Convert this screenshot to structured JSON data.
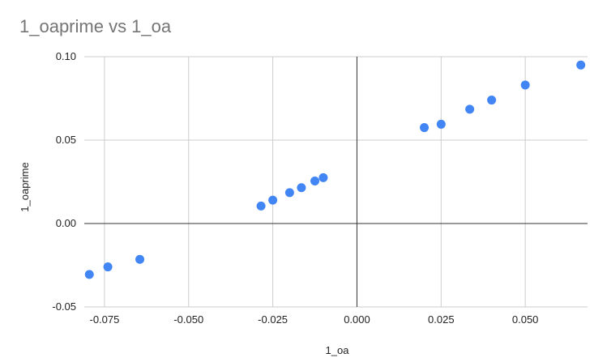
{
  "chart_data": {
    "type": "scatter",
    "title": "1_oaprime vs 1_oa",
    "xlabel": "1_oa",
    "ylabel": "1_oaprime",
    "xlim": [
      -0.081,
      0.0685
    ],
    "ylim": [
      -0.05,
      0.1
    ],
    "x_ticks": [
      -0.075,
      -0.05,
      -0.025,
      0.0,
      0.025,
      0.05
    ],
    "x_tick_labels": [
      "-0.075",
      "-0.050",
      "-0.025",
      "0.000",
      "0.025",
      "0.050"
    ],
    "y_ticks": [
      -0.05,
      0.0,
      0.05,
      0.1
    ],
    "y_tick_labels": [
      "-0.05",
      "0.00",
      "0.05",
      "0.10"
    ],
    "grid": true,
    "legend": "none",
    "point_color": "#4285F4",
    "points": [
      {
        "x": -0.0795,
        "y": -0.0305
      },
      {
        "x": -0.074,
        "y": -0.026
      },
      {
        "x": -0.0645,
        "y": -0.0215
      },
      {
        "x": -0.0285,
        "y": 0.0105
      },
      {
        "x": -0.025,
        "y": 0.014
      },
      {
        "x": -0.02,
        "y": 0.0185
      },
      {
        "x": -0.0165,
        "y": 0.0215
      },
      {
        "x": -0.0125,
        "y": 0.0255
      },
      {
        "x": -0.01,
        "y": 0.0275
      },
      {
        "x": 0.02,
        "y": 0.0575
      },
      {
        "x": 0.025,
        "y": 0.0595
      },
      {
        "x": 0.0335,
        "y": 0.0685
      },
      {
        "x": 0.04,
        "y": 0.074
      },
      {
        "x": 0.05,
        "y": 0.083
      },
      {
        "x": 0.0665,
        "y": 0.095
      }
    ]
  }
}
